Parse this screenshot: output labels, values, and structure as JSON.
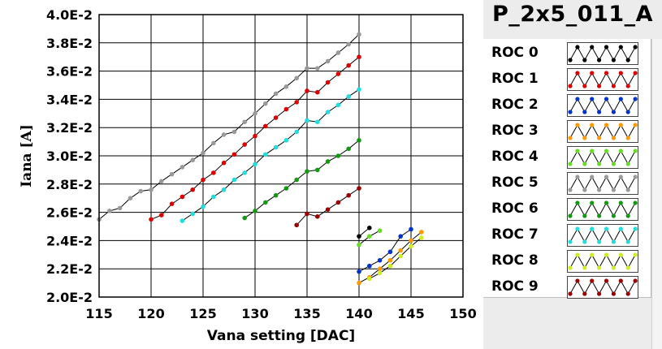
{
  "chart_data": {
    "type": "line",
    "title": "P_2x5_011_A",
    "xlabel": "Vana setting [DAC]",
    "ylabel": "Iana [A]",
    "xlim": [
      115,
      150
    ],
    "ylim": [
      0.02,
      0.04
    ],
    "xticks": [
      115,
      120,
      125,
      130,
      135,
      140,
      145,
      150
    ],
    "xtick_labels": [
      "115",
      "120",
      "125",
      "130",
      "135",
      "140",
      "145",
      "150"
    ],
    "yticks": [
      0.02,
      0.022,
      0.024,
      0.026,
      0.028,
      0.03,
      0.032,
      0.034,
      0.036,
      0.038,
      0.04
    ],
    "ytick_labels": [
      "2.0E-2",
      "2.2E-2",
      "2.4E-2",
      "2.6E-2",
      "2.8E-2",
      "3.0E-2",
      "3.2E-2",
      "3.4E-2",
      "3.6E-2",
      "3.8E-2",
      "4.0E-2"
    ],
    "grid": true,
    "legend_position": "right",
    "series": [
      {
        "name": "ROC 0",
        "color": "#000000",
        "x": [
          140,
          141
        ],
        "y": [
          0.0243,
          0.0249
        ]
      },
      {
        "name": "ROC 1",
        "color": "#dd0000",
        "x": [
          120,
          121,
          122,
          123,
          124,
          125,
          126,
          127,
          128,
          129,
          130,
          131,
          132,
          133,
          134,
          135,
          136,
          137,
          138,
          139,
          140
        ],
        "y": [
          0.0255,
          0.0258,
          0.0266,
          0.0271,
          0.0276,
          0.0283,
          0.0288,
          0.0295,
          0.0301,
          0.0308,
          0.0314,
          0.0321,
          0.0327,
          0.0333,
          0.0338,
          0.0346,
          0.0345,
          0.0352,
          0.0358,
          0.0364,
          0.037
        ]
      },
      {
        "name": "ROC 2",
        "color": "#0033cc",
        "x": [
          140,
          141,
          142,
          143,
          144,
          145
        ],
        "y": [
          0.0218,
          0.0222,
          0.0226,
          0.0232,
          0.0243,
          0.0248
        ]
      },
      {
        "name": "ROC 3",
        "color": "#ff9900",
        "x": [
          140,
          141,
          142,
          143,
          144,
          145,
          146
        ],
        "y": [
          0.021,
          0.0214,
          0.022,
          0.0226,
          0.0233,
          0.024,
          0.0246
        ]
      },
      {
        "name": "ROC 4",
        "color": "#66dd22",
        "x": [
          140,
          141,
          142
        ],
        "y": [
          0.0237,
          0.0243,
          0.0247
        ]
      },
      {
        "name": "ROC 5",
        "color": "#999999",
        "x": [
          115,
          116,
          117,
          118,
          119,
          120,
          121,
          122,
          123,
          124,
          125,
          126,
          127,
          128,
          129,
          130,
          131,
          132,
          133,
          134,
          135,
          136,
          137,
          138,
          139,
          140
        ],
        "y": [
          0.0255,
          0.0261,
          0.0263,
          0.027,
          0.0275,
          0.0276,
          0.0282,
          0.0287,
          0.0292,
          0.0297,
          0.0302,
          0.0309,
          0.0315,
          0.0317,
          0.0324,
          0.033,
          0.0337,
          0.0344,
          0.0349,
          0.0355,
          0.0362,
          0.0362,
          0.0367,
          0.0373,
          0.0379,
          0.0386
        ]
      },
      {
        "name": "ROC 6",
        "color": "#119911",
        "x": [
          129,
          130,
          131,
          132,
          133,
          134,
          135,
          136,
          137,
          138,
          139,
          140
        ],
        "y": [
          0.0256,
          0.0261,
          0.0267,
          0.0272,
          0.0277,
          0.0283,
          0.0289,
          0.029,
          0.0296,
          0.03,
          0.0305,
          0.0311
        ]
      },
      {
        "name": "ROC 7",
        "color": "#22dddd",
        "x": [
          123,
          124,
          125,
          126,
          127,
          128,
          129,
          130,
          131,
          132,
          133,
          134,
          135,
          136,
          137,
          138,
          139,
          140
        ],
        "y": [
          0.0254,
          0.0259,
          0.0264,
          0.0271,
          0.0276,
          0.0283,
          0.0288,
          0.0294,
          0.0301,
          0.0306,
          0.0311,
          0.0317,
          0.0325,
          0.0324,
          0.0331,
          0.0336,
          0.0342,
          0.0347
        ]
      },
      {
        "name": "ROC 8",
        "color": "#ccee22",
        "x": [
          141,
          142,
          143,
          144,
          145,
          146
        ],
        "y": [
          0.0213,
          0.0217,
          0.0222,
          0.0229,
          0.0236,
          0.0242
        ]
      },
      {
        "name": "ROC 9",
        "color": "#990000",
        "x": [
          134,
          135,
          136,
          137,
          138,
          139,
          140
        ],
        "y": [
          0.0251,
          0.0259,
          0.0257,
          0.0262,
          0.0267,
          0.0272,
          0.0277
        ]
      }
    ]
  }
}
